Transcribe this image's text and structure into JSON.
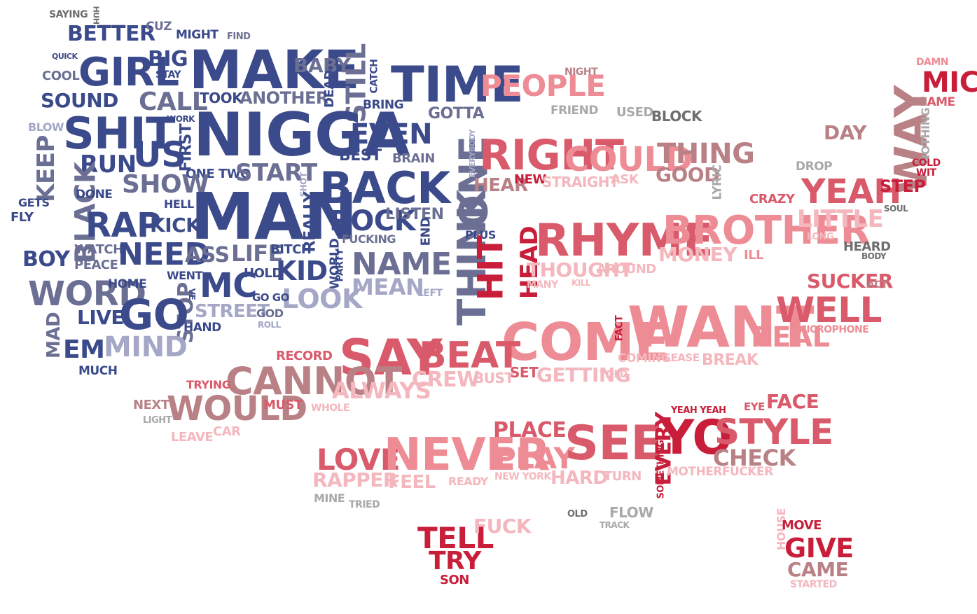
{
  "colors": {
    "navy": "#3b4a8a",
    "slate": "#6b6f93",
    "lavender": "#a4a7c6",
    "crimson": "#c81e3a",
    "red": "#d95a6a",
    "pink": "#ee8c95",
    "lightpink": "#f4b7bd",
    "dusty": "#b98186",
    "gray": "#a9a9a9",
    "darkgray": "#6e6e6e"
  },
  "words": [
    {
      "text": "SAYING",
      "color": "darkgray"
    },
    {
      "text": "HUH",
      "color": "darkgray"
    },
    {
      "text": "BETTER",
      "color": "navy"
    },
    {
      "text": "CUZ",
      "color": "slate"
    },
    {
      "text": "MIGHT",
      "color": "navy"
    },
    {
      "text": "FIND",
      "color": "slate"
    },
    {
      "text": "QUICK",
      "color": "navy"
    },
    {
      "text": "GIRL",
      "color": "navy"
    },
    {
      "text": "BIG",
      "color": "navy"
    },
    {
      "text": "STAY",
      "color": "navy"
    },
    {
      "text": "MAKE",
      "color": "navy"
    },
    {
      "text": "BABY",
      "color": "slate"
    },
    {
      "text": "STILL",
      "color": "slate"
    },
    {
      "text": "CATCH",
      "color": "navy"
    },
    {
      "text": "TIME",
      "color": "navy"
    },
    {
      "text": "COOL",
      "color": "slate"
    },
    {
      "text": "SOUND",
      "color": "navy"
    },
    {
      "text": "CALL",
      "color": "slate"
    },
    {
      "text": "TOOK",
      "color": "navy"
    },
    {
      "text": "ANOTHER",
      "color": "slate"
    },
    {
      "text": "DEAD",
      "color": "navy"
    },
    {
      "text": "BRING",
      "color": "navy"
    },
    {
      "text": "GOTTA",
      "color": "slate"
    },
    {
      "text": "BLOW",
      "color": "lavender"
    },
    {
      "text": "WORK",
      "color": "navy"
    },
    {
      "text": "SHIT",
      "color": "navy"
    },
    {
      "text": "NIGGA",
      "color": "navy"
    },
    {
      "text": "EVEN",
      "color": "navy"
    },
    {
      "text": "KEEP",
      "color": "slate"
    },
    {
      "text": "US",
      "color": "navy"
    },
    {
      "text": "FIRST",
      "color": "navy"
    },
    {
      "text": "RUN",
      "color": "navy"
    },
    {
      "text": "BEST",
      "color": "navy"
    },
    {
      "text": "BRAIN",
      "color": "slate"
    },
    {
      "text": "ONE TWO",
      "color": "navy"
    },
    {
      "text": "START",
      "color": "slate"
    },
    {
      "text": "SHOW",
      "color": "slate"
    },
    {
      "text": "BACK",
      "color": "navy"
    },
    {
      "text": "BLACK",
      "color": "slate"
    },
    {
      "text": "DONE",
      "color": "navy"
    },
    {
      "text": "GETS",
      "color": "navy"
    },
    {
      "text": "FLY",
      "color": "navy"
    },
    {
      "text": "HELL",
      "color": "navy"
    },
    {
      "text": "MAN",
      "color": "navy"
    },
    {
      "text": "SHOT",
      "color": "lavender"
    },
    {
      "text": "ROCK",
      "color": "navy"
    },
    {
      "text": "LISTEN",
      "color": "slate"
    },
    {
      "text": "RAP",
      "color": "navy"
    },
    {
      "text": "KICK",
      "color": "navy"
    },
    {
      "text": "REALLY",
      "color": "navy"
    },
    {
      "text": "END",
      "color": "navy"
    },
    {
      "text": "FUCKING",
      "color": "slate"
    },
    {
      "text": "BOY",
      "color": "navy"
    },
    {
      "text": "WATCH",
      "color": "slate"
    },
    {
      "text": "PEACE",
      "color": "slate"
    },
    {
      "text": "NEED",
      "color": "navy"
    },
    {
      "text": "ASS",
      "color": "slate"
    },
    {
      "text": "LIFE",
      "color": "slate"
    },
    {
      "text": "BITCH",
      "color": "navy"
    },
    {
      "text": "KID",
      "color": "navy"
    },
    {
      "text": "WORLD",
      "color": "navy"
    },
    {
      "text": "PARTY",
      "color": "navy"
    },
    {
      "text": "NAME",
      "color": "slate"
    },
    {
      "text": "WORD",
      "color": "slate"
    },
    {
      "text": "WENT",
      "color": "navy"
    },
    {
      "text": "HOME",
      "color": "navy"
    },
    {
      "text": "HOLD",
      "color": "navy"
    },
    {
      "text": "MC",
      "color": "navy"
    },
    {
      "text": "MEAN",
      "color": "lavender"
    },
    {
      "text": "LEFT",
      "color": "lavender"
    },
    {
      "text": "LOOK",
      "color": "lavender"
    },
    {
      "text": "STOP",
      "color": "slate"
    },
    {
      "text": "GO GO",
      "color": "navy"
    },
    {
      "text": "VE",
      "color": "navy"
    },
    {
      "text": "GO",
      "color": "navy"
    },
    {
      "text": "LIVE",
      "color": "navy"
    },
    {
      "text": "STREET",
      "color": "lavender"
    },
    {
      "text": "GOD",
      "color": "slate"
    },
    {
      "text": "HAND",
      "color": "navy"
    },
    {
      "text": "ROLL",
      "color": "lavender"
    },
    {
      "text": "MAD",
      "color": "slate"
    },
    {
      "text": "EM",
      "color": "navy"
    },
    {
      "text": "MIND",
      "color": "lavender"
    },
    {
      "text": "MUCH",
      "color": "navy"
    },
    {
      "text": "THINK",
      "color": "slate"
    },
    {
      "text": "ONE",
      "color": "slate"
    },
    {
      "text": "EVERYBODY",
      "color": "lavender"
    },
    {
      "text": "PLUS",
      "color": "navy"
    },
    {
      "text": "PEOPLE",
      "color": "pink"
    },
    {
      "text": "NIGHT",
      "color": "dusty"
    },
    {
      "text": "FRIEND",
      "color": "gray"
    },
    {
      "text": "USED",
      "color": "gray"
    },
    {
      "text": "BLOCK",
      "color": "darkgray"
    },
    {
      "text": "RIGHT",
      "color": "red"
    },
    {
      "text": "COULD",
      "color": "pink"
    },
    {
      "text": "THING",
      "color": "dusty"
    },
    {
      "text": "HEAR",
      "color": "dusty"
    },
    {
      "text": "NEW",
      "color": "crimson"
    },
    {
      "text": "STRAIGHT",
      "color": "lightpink"
    },
    {
      "text": "ASK",
      "color": "lightpink"
    },
    {
      "text": "GOOD",
      "color": "dusty"
    },
    {
      "text": "LYRIC",
      "color": "gray"
    },
    {
      "text": "HIT",
      "color": "crimson"
    },
    {
      "text": "HEAD",
      "color": "crimson"
    },
    {
      "text": "RHYME",
      "color": "red"
    },
    {
      "text": "BROTHER",
      "color": "pink"
    },
    {
      "text": "MONEY",
      "color": "lightpink"
    },
    {
      "text": "ILL",
      "color": "pink"
    },
    {
      "text": "THOUGHT",
      "color": "lightpink"
    },
    {
      "text": "AROUND",
      "color": "lightpink"
    },
    {
      "text": "MANY",
      "color": "lightpink"
    },
    {
      "text": "KILL",
      "color": "lightpink"
    },
    {
      "text": "WANT",
      "color": "pink"
    },
    {
      "text": "COME",
      "color": "pink"
    },
    {
      "text": "SAY",
      "color": "red"
    },
    {
      "text": "BEAT",
      "color": "red"
    },
    {
      "text": "FACT",
      "color": "crimson"
    },
    {
      "text": "REAL",
      "color": "pink"
    },
    {
      "text": "WELL",
      "color": "red"
    },
    {
      "text": "MICROPHONE",
      "color": "pink"
    },
    {
      "text": "COMING",
      "color": "lightpink"
    },
    {
      "text": "PLEASE",
      "color": "lightpink"
    },
    {
      "text": "BREAK",
      "color": "lightpink"
    },
    {
      "text": "RECORD",
      "color": "red"
    },
    {
      "text": "CANNOT",
      "color": "dusty"
    },
    {
      "text": "ALWAYS",
      "color": "lightpink"
    },
    {
      "text": "CREW",
      "color": "lightpink"
    },
    {
      "text": "BUST",
      "color": "lightpink"
    },
    {
      "text": "SET",
      "color": "red"
    },
    {
      "text": "GETTING",
      "color": "lightpink"
    },
    {
      "text": "TOLD",
      "color": "lightpink"
    },
    {
      "text": "TRYING",
      "color": "red"
    },
    {
      "text": "NEXT",
      "color": "dusty"
    },
    {
      "text": "LIGHT",
      "color": "gray"
    },
    {
      "text": "WOULD",
      "color": "dusty"
    },
    {
      "text": "MUST",
      "color": "red"
    },
    {
      "text": "WHOLE",
      "color": "lightpink"
    },
    {
      "text": "LEAVE",
      "color": "lightpink"
    },
    {
      "text": "CAR",
      "color": "lightpink"
    },
    {
      "text": "DAMN",
      "color": "pink"
    },
    {
      "text": "MIC",
      "color": "crimson"
    },
    {
      "text": "GAME",
      "color": "red"
    },
    {
      "text": "DAY",
      "color": "dusty"
    },
    {
      "text": "WAY",
      "color": "dusty"
    },
    {
      "text": "NOTHING",
      "color": "gray"
    },
    {
      "text": "COLD",
      "color": "crimson"
    },
    {
      "text": "WIT",
      "color": "crimson"
    },
    {
      "text": "DROP",
      "color": "gray"
    },
    {
      "text": "YEAH",
      "color": "red"
    },
    {
      "text": "STEP",
      "color": "crimson"
    },
    {
      "text": "CRAZY",
      "color": "red"
    },
    {
      "text": "SOUL",
      "color": "darkgray"
    },
    {
      "text": "LITTLE",
      "color": "lightpink"
    },
    {
      "text": "LONG",
      "color": "lightpink"
    },
    {
      "text": "HEARD",
      "color": "darkgray"
    },
    {
      "text": "BODY",
      "color": "darkgray"
    },
    {
      "text": "SUCKER",
      "color": "red"
    },
    {
      "text": "ACT",
      "color": "dusty"
    },
    {
      "text": "YEAH YEAH",
      "color": "crimson"
    },
    {
      "text": "EYE",
      "color": "red"
    },
    {
      "text": "FACE",
      "color": "red"
    },
    {
      "text": "PLACE",
      "color": "red"
    },
    {
      "text": "LOVE",
      "color": "red"
    },
    {
      "text": "NEVER",
      "color": "pink"
    },
    {
      "text": "PLAY",
      "color": "pink"
    },
    {
      "text": "SEE",
      "color": "red"
    },
    {
      "text": "EVERY",
      "color": "crimson"
    },
    {
      "text": "YO",
      "color": "crimson"
    },
    {
      "text": "STYLE",
      "color": "red"
    },
    {
      "text": "CHECK",
      "color": "dusty"
    },
    {
      "text": "SOMETHING",
      "color": "crimson"
    },
    {
      "text": "MOTHERFUCKER",
      "color": "lightpink"
    },
    {
      "text": "RAPPER",
      "color": "lightpink"
    },
    {
      "text": "FEEL",
      "color": "lightpink"
    },
    {
      "text": "READY",
      "color": "lightpink"
    },
    {
      "text": "NEW YORK",
      "color": "lightpink"
    },
    {
      "text": "HARD",
      "color": "lightpink"
    },
    {
      "text": "TURN",
      "color": "lightpink"
    },
    {
      "text": "MINE",
      "color": "gray"
    },
    {
      "text": "TRIED",
      "color": "gray"
    },
    {
      "text": "OLD",
      "color": "darkgray"
    },
    {
      "text": "FLOW",
      "color": "gray"
    },
    {
      "text": "TRACK",
      "color": "gray"
    },
    {
      "text": "TELL",
      "color": "crimson"
    },
    {
      "text": "FUCK",
      "color": "lightpink"
    },
    {
      "text": "TRY",
      "color": "crimson"
    },
    {
      "text": "SON",
      "color": "crimson"
    },
    {
      "text": "HOUSE",
      "color": "lightpink"
    },
    {
      "text": "MOVE",
      "color": "crimson"
    },
    {
      "text": "GIVE",
      "color": "crimson"
    },
    {
      "text": "CAME",
      "color": "dusty"
    },
    {
      "text": "STARTED",
      "color": "lightpink"
    }
  ]
}
